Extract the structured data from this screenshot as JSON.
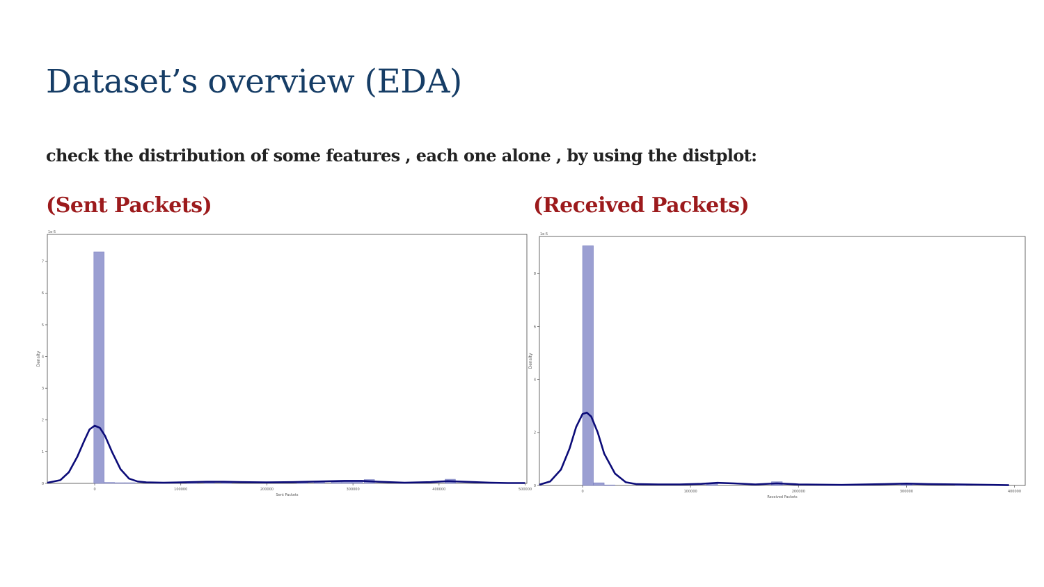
{
  "slide": {
    "title": "Dataset’s overview (EDA)",
    "subtitle": "check the distribution of some features , each one alone , by using the distplot:"
  },
  "panels": [
    {
      "heading": "(Sent Packets)"
    },
    {
      "heading": "(Received Packets)"
    }
  ],
  "colors": {
    "title": "#163d66",
    "heading": "#9c1a1c",
    "bar_fill": "#9b9fd2",
    "bar_stroke": "#7a7fc0",
    "kde_line": "#0b0b78"
  },
  "chart_data": [
    {
      "type": "bar",
      "subtype": "distplot (histogram + KDE)",
      "title": "",
      "xlabel": "Sent Packets",
      "ylabel": "Density",
      "y_offset_label": "1e-5",
      "xlim": [
        -55000,
        502000
      ],
      "ylim": [
        0,
        7.85
      ],
      "x_ticks": [
        0,
        100000,
        200000,
        300000,
        400000,
        500000
      ],
      "x_tick_labels": [
        "0",
        "100000",
        "200000",
        "300000",
        "400000",
        "500000"
      ],
      "y_ticks": [
        0,
        1,
        2,
        3,
        4,
        5,
        6,
        7
      ],
      "y_tick_labels": [
        "0",
        "1",
        "2",
        "3",
        "4",
        "5",
        "6",
        "7"
      ],
      "bins": [
        {
          "x0": -1000,
          "x1": 11000,
          "density": 7.3
        },
        {
          "x0": 11000,
          "x1": 23000,
          "density": 0.03
        },
        {
          "x0": 23000,
          "x1": 35000,
          "density": 0.02
        },
        {
          "x0": 35000,
          "x1": 47000,
          "density": 0.02
        },
        {
          "x0": 107000,
          "x1": 119000,
          "density": 0.03
        },
        {
          "x0": 127000,
          "x1": 139000,
          "density": 0.04
        },
        {
          "x0": 147000,
          "x1": 159000,
          "density": 0.06
        },
        {
          "x0": 235000,
          "x1": 247000,
          "density": 0.05
        },
        {
          "x0": 255000,
          "x1": 267000,
          "density": 0.05
        },
        {
          "x0": 275000,
          "x1": 287000,
          "density": 0.06
        },
        {
          "x0": 287000,
          "x1": 299000,
          "density": 0.08
        },
        {
          "x0": 299000,
          "x1": 311000,
          "density": 0.08
        },
        {
          "x0": 313000,
          "x1": 325000,
          "density": 0.12
        },
        {
          "x0": 407000,
          "x1": 419000,
          "density": 0.13
        }
      ],
      "kde": {
        "x": [
          -55000,
          -40000,
          -30000,
          -20000,
          -12000,
          -6000,
          0,
          6000,
          12000,
          20000,
          30000,
          40000,
          50000,
          60000,
          80000,
          100000,
          130000,
          150000,
          170000,
          200000,
          230000,
          260000,
          290000,
          310000,
          330000,
          360000,
          390000,
          410000,
          430000,
          460000,
          480000,
          500000
        ],
        "y": [
          0.02,
          0.1,
          0.35,
          0.85,
          1.35,
          1.7,
          1.82,
          1.75,
          1.5,
          1.0,
          0.45,
          0.15,
          0.06,
          0.03,
          0.02,
          0.03,
          0.05,
          0.05,
          0.04,
          0.03,
          0.04,
          0.06,
          0.08,
          0.08,
          0.05,
          0.02,
          0.04,
          0.07,
          0.05,
          0.02,
          0.01,
          0.01
        ]
      }
    },
    {
      "type": "bar",
      "subtype": "distplot (histogram + KDE)",
      "title": "",
      "xlabel": "Received Packets",
      "ylabel": "Density",
      "y_offset_label": "1e-5",
      "xlim": [
        -40000,
        410000
      ],
      "ylim": [
        0,
        9.4
      ],
      "x_ticks": [
        0,
        100000,
        200000,
        300000,
        400000
      ],
      "x_tick_labels": [
        "0",
        "100000",
        "200000",
        "300000",
        "400000"
      ],
      "y_ticks": [
        0,
        2,
        4,
        6,
        8
      ],
      "y_tick_labels": [
        "0",
        "2",
        "4",
        "6",
        "8"
      ],
      "bins": [
        {
          "x0": 0,
          "x1": 10000,
          "density": 9.05
        },
        {
          "x0": 10000,
          "x1": 20000,
          "density": 0.1
        },
        {
          "x0": 20000,
          "x1": 30000,
          "density": 0.02
        },
        {
          "x0": 115000,
          "x1": 125000,
          "density": 0.08
        },
        {
          "x0": 175000,
          "x1": 185000,
          "density": 0.14
        },
        {
          "x0": 295000,
          "x1": 305000,
          "density": 0.04
        },
        {
          "x0": 345000,
          "x1": 355000,
          "density": 0.05
        }
      ],
      "kde": {
        "x": [
          -40000,
          -30000,
          -20000,
          -12000,
          -6000,
          0,
          4000,
          8000,
          14000,
          20000,
          30000,
          40000,
          50000,
          70000,
          90000,
          110000,
          125000,
          140000,
          160000,
          180000,
          200000,
          240000,
          280000,
          300000,
          320000,
          350000,
          380000,
          395000
        ],
        "y": [
          0.03,
          0.15,
          0.6,
          1.4,
          2.2,
          2.7,
          2.75,
          2.6,
          2.0,
          1.2,
          0.45,
          0.12,
          0.05,
          0.04,
          0.04,
          0.06,
          0.1,
          0.08,
          0.04,
          0.08,
          0.04,
          0.02,
          0.05,
          0.07,
          0.05,
          0.04,
          0.02,
          0.01
        ]
      }
    }
  ]
}
